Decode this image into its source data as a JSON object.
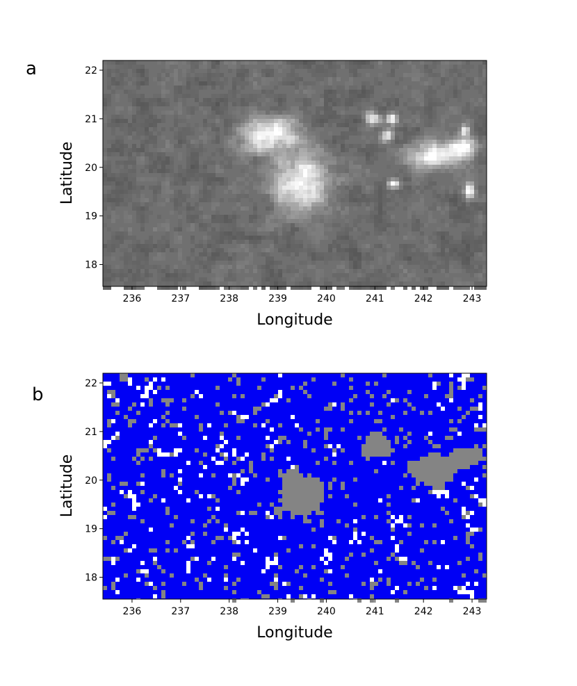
{
  "panels": [
    {
      "letter": "a",
      "xlabel": "Longitude",
      "ylabel": "Latitude",
      "render": "grayscale",
      "colors": {
        "background": "#707070",
        "bright": "#ffffff",
        "dark": "#3f3f3f"
      }
    },
    {
      "letter": "b",
      "xlabel": "Longitude",
      "ylabel": "Latitude",
      "render": "classification",
      "colors": {
        "background": "#0000f5",
        "class_gray": "#848484",
        "class_white": "#ffffff"
      }
    }
  ],
  "chart_data": [
    {
      "type": "heatmap",
      "xlabel": "Longitude",
      "ylabel": "Latitude",
      "xlim": [
        235.4,
        243.3
      ],
      "ylim": [
        17.55,
        22.2
      ],
      "xticks": [
        236,
        237,
        238,
        239,
        240,
        241,
        242,
        243
      ],
      "yticks": [
        18,
        19,
        20,
        21,
        22
      ],
      "grid": false,
      "bright_features": [
        {
          "lon": 239.5,
          "lat": 19.7,
          "rlon": 0.55,
          "rlat": 0.55
        },
        {
          "lon": 238.85,
          "lat": 20.65,
          "rlon": 0.55,
          "rlat": 0.35
        },
        {
          "lon": 242.2,
          "lat": 20.25,
          "rlon": 0.45,
          "rlat": 0.25
        },
        {
          "lon": 242.8,
          "lat": 20.4,
          "rlon": 0.3,
          "rlat": 0.2
        },
        {
          "lon": 240.95,
          "lat": 21.0,
          "rlon": 0.15,
          "rlat": 0.12
        },
        {
          "lon": 241.25,
          "lat": 20.65,
          "rlon": 0.12,
          "rlat": 0.12
        },
        {
          "lon": 241.35,
          "lat": 21.0,
          "rlon": 0.1,
          "rlat": 0.1
        },
        {
          "lon": 241.4,
          "lat": 19.65,
          "rlon": 0.12,
          "rlat": 0.08
        },
        {
          "lon": 242.95,
          "lat": 19.5,
          "rlon": 0.1,
          "rlat": 0.15
        },
        {
          "lon": 242.85,
          "lat": 20.75,
          "rlon": 0.08,
          "rlat": 0.1
        }
      ]
    },
    {
      "type": "heatmap",
      "xlabel": "Longitude",
      "ylabel": "Latitude",
      "xlim": [
        235.4,
        243.3
      ],
      "ylim": [
        17.55,
        22.2
      ],
      "xticks": [
        236,
        237,
        238,
        239,
        240,
        241,
        242,
        243
      ],
      "yticks": [
        18,
        19,
        20,
        21,
        22
      ],
      "grid": false,
      "classes": [
        "blue",
        "gray",
        "white"
      ],
      "gray_regions": [
        {
          "lon": 239.45,
          "lat": 19.7,
          "rlon": 0.55,
          "rlat": 0.45
        },
        {
          "lon": 242.2,
          "lat": 20.2,
          "rlon": 0.55,
          "rlat": 0.3
        },
        {
          "lon": 241.0,
          "lat": 20.7,
          "rlon": 0.3,
          "rlat": 0.25
        },
        {
          "lon": 242.9,
          "lat": 20.5,
          "rlon": 0.3,
          "rlat": 0.2
        }
      ]
    }
  ]
}
